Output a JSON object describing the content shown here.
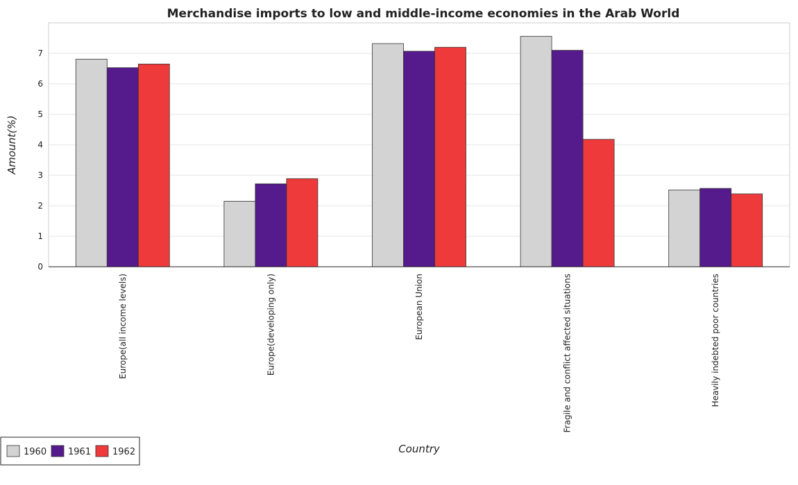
{
  "chart_data": {
    "type": "bar",
    "title": "Merchandise imports to low and middle-income economies in the Arab World",
    "xlabel": "Country",
    "ylabel": "Amount(%)",
    "categories": [
      "Europe(all income levels)",
      "Europe(developing only)",
      "European Union",
      "Fragile and conflict affected situations",
      "Heavily indebted poor countries"
    ],
    "series": [
      {
        "name": "1960",
        "color": "#d3d3d3",
        "values": [
          6.81,
          2.15,
          7.32,
          7.56,
          2.52
        ]
      },
      {
        "name": "1961",
        "color": "#551a8b",
        "values": [
          6.53,
          2.72,
          7.07,
          7.1,
          2.57
        ]
      },
      {
        "name": "1962",
        "color": "#ee3a3a",
        "values": [
          6.65,
          2.89,
          7.2,
          4.18,
          2.39
        ]
      }
    ],
    "yticks": [
      0,
      1,
      2,
      3,
      4,
      5,
      6,
      7
    ],
    "ylim": [
      0,
      8
    ],
    "grid": true,
    "legend_position": "bottom-left"
  }
}
